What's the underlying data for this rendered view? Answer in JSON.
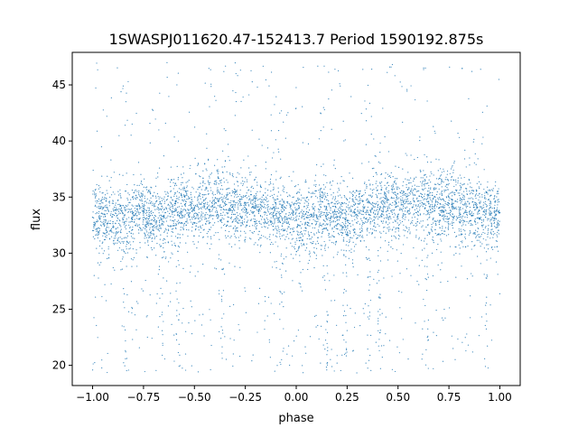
{
  "chart_data": {
    "type": "scatter",
    "title": "1SWASPJ011620.47-152413.7 Period 1590192.875s",
    "xlabel": "phase",
    "ylabel": "flux",
    "xlim": [
      -1.1,
      1.1
    ],
    "ylim": [
      18.2,
      47.9
    ],
    "xticks": [
      -1.0,
      -0.75,
      -0.5,
      -0.25,
      0.0,
      0.25,
      0.5,
      0.75,
      1.0
    ],
    "xtick_labels": [
      "−1.00",
      "−0.75",
      "−0.50",
      "−0.25",
      "0.00",
      "0.25",
      "0.50",
      "0.75",
      "1.00"
    ],
    "yticks": [
      20,
      25,
      30,
      35,
      40,
      45
    ],
    "ytick_labels": [
      "20",
      "25",
      "30",
      "35",
      "40",
      "45"
    ],
    "grid": false,
    "legend": "none",
    "series_color": "#1f77b4",
    "series": [
      {
        "x": [
          -1.0,
          -0.95,
          -0.9,
          -0.85,
          -0.8,
          -0.77,
          -0.75,
          -0.7,
          -0.65,
          -0.6,
          -0.55,
          -0.5,
          -0.45,
          -0.4,
          -0.36,
          -0.35,
          -0.33,
          -0.3,
          -0.25,
          -0.2,
          -0.15,
          -0.1,
          -0.07,
          -0.05,
          0.0,
          0.05,
          0.1,
          0.15,
          0.2,
          0.25,
          0.3,
          0.35,
          0.4,
          0.45,
          0.5,
          0.55,
          0.6,
          0.64,
          0.65,
          0.68,
          0.7,
          0.75,
          0.8,
          0.85,
          0.9,
          0.93,
          0.95,
          1.0
        ],
        "y": [
          33.2,
          33.5,
          32.8,
          33.0,
          33.6,
          34.2,
          33.4,
          32.9,
          33.3,
          33.7,
          33.9,
          34.0,
          34.2,
          34.1,
          34.6,
          34.4,
          33.8,
          34.3,
          34.5,
          34.0,
          33.6,
          33.4,
          33.1,
          33.5,
          33.0,
          33.2,
          33.4,
          33.6,
          33.3,
          32.9,
          33.4,
          33.8,
          34.1,
          34.0,
          34.2,
          34.4,
          34.3,
          34.8,
          34.6,
          34.2,
          34.0,
          34.4,
          33.9,
          33.7,
          33.8,
          33.5,
          33.4,
          33.6
        ]
      }
    ]
  }
}
